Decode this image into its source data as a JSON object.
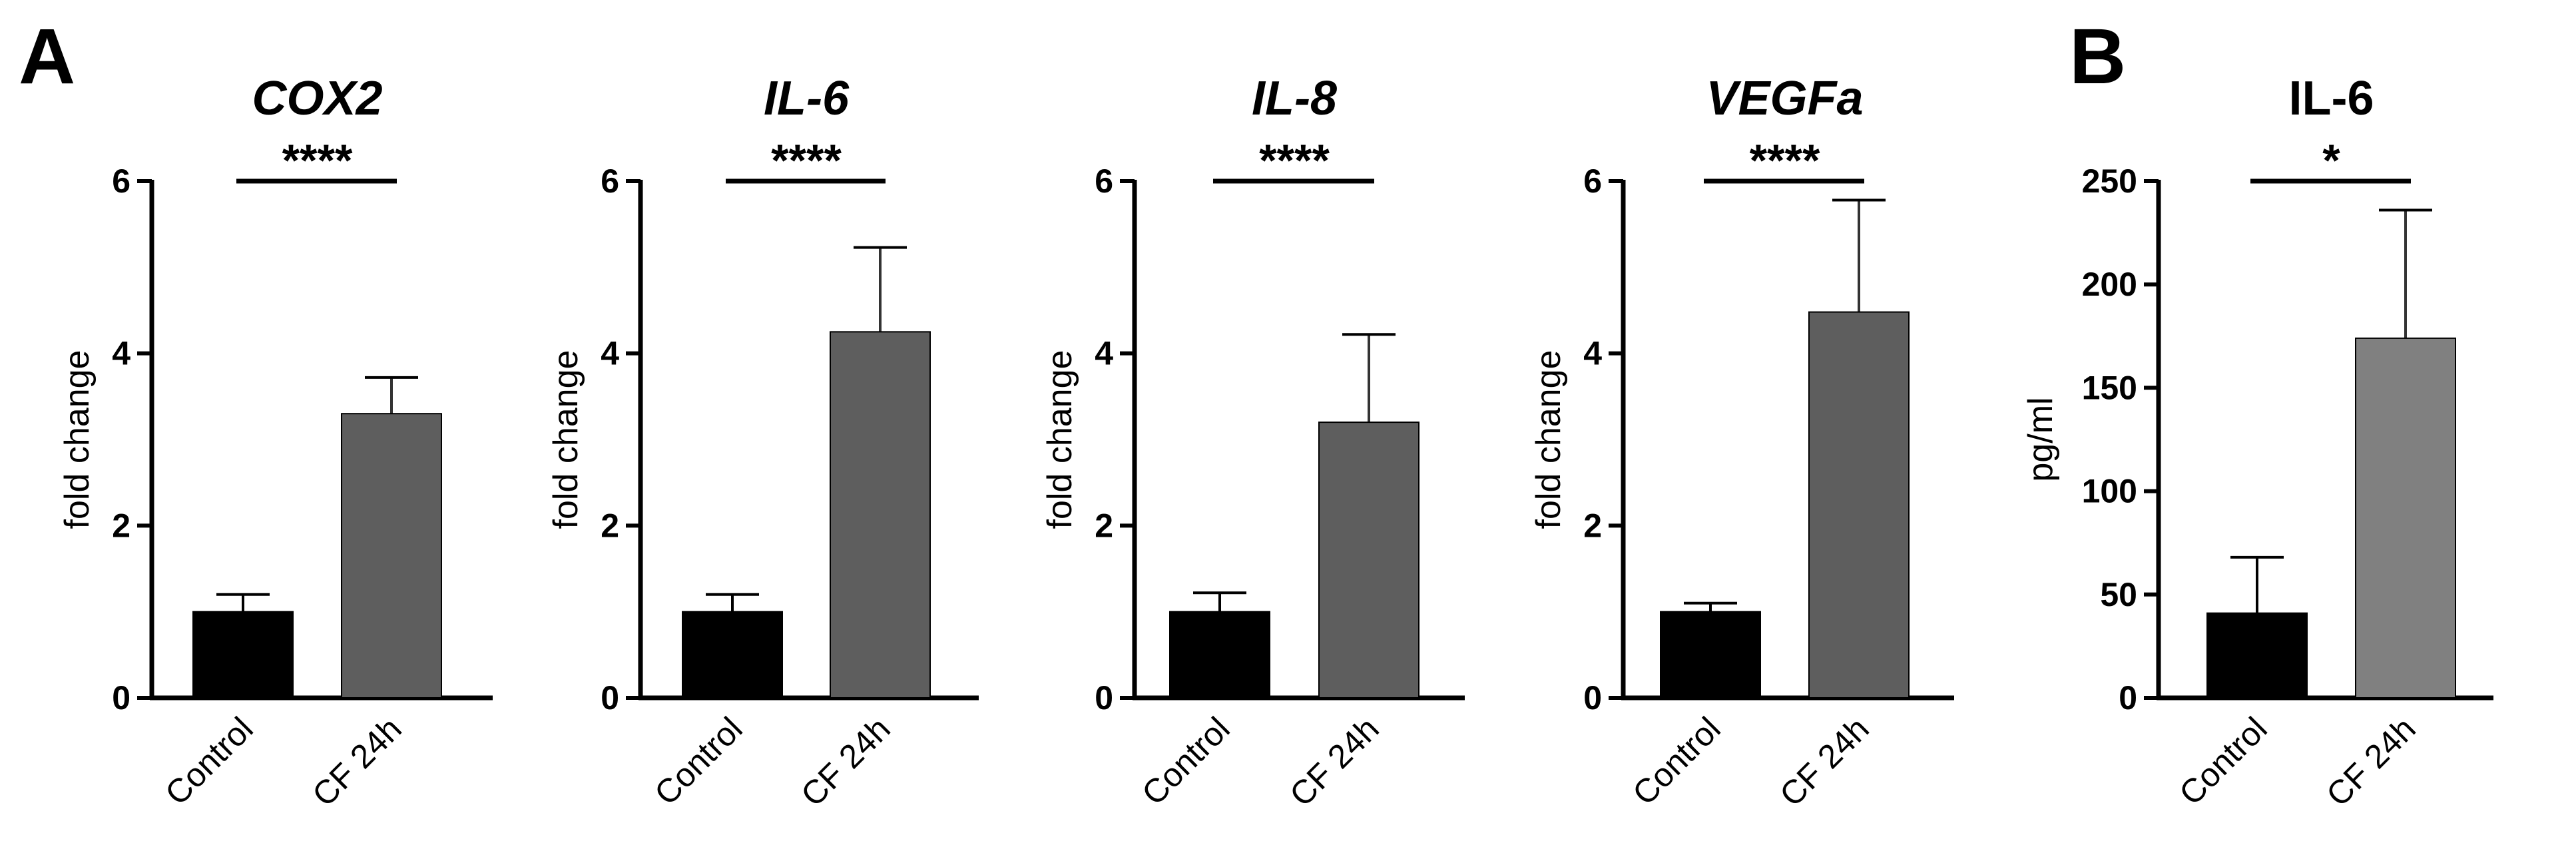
{
  "chart_data": [
    {
      "type": "bar",
      "panel": "A",
      "title": "COX2",
      "title_style": "italic",
      "xlabel": "",
      "ylabel": "fold change",
      "ylim": [
        0,
        6
      ],
      "yticks": [
        0,
        2,
        4,
        6
      ],
      "categories": [
        "Control",
        "CF 24h"
      ],
      "values": [
        1.0,
        3.3
      ],
      "errors": [
        0.2,
        0.42
      ],
      "colors": [
        "#000000",
        "#5e5e5e"
      ],
      "significance": "****"
    },
    {
      "type": "bar",
      "title": "IL-6",
      "title_style": "italic",
      "xlabel": "",
      "ylabel": "fold change",
      "ylim": [
        0,
        6
      ],
      "yticks": [
        0,
        2,
        4,
        6
      ],
      "categories": [
        "Control",
        "CF 24h"
      ],
      "values": [
        1.0,
        4.25
      ],
      "errors": [
        0.2,
        0.98
      ],
      "colors": [
        "#000000",
        "#5e5e5e"
      ],
      "significance": "****"
    },
    {
      "type": "bar",
      "title": "IL-8",
      "title_style": "italic",
      "xlabel": "",
      "ylabel": "fold change",
      "ylim": [
        0,
        6
      ],
      "yticks": [
        0,
        2,
        4,
        6
      ],
      "categories": [
        "Control",
        "CF 24h"
      ],
      "values": [
        1.0,
        3.2
      ],
      "errors": [
        0.22,
        1.02
      ],
      "colors": [
        "#000000",
        "#5e5e5e"
      ],
      "significance": "****"
    },
    {
      "type": "bar",
      "title": "VEGFa",
      "title_style": "italic",
      "xlabel": "",
      "ylabel": "fold change",
      "ylim": [
        0,
        6
      ],
      "yticks": [
        0,
        2,
        4,
        6
      ],
      "categories": [
        "Control",
        "CF 24h"
      ],
      "values": [
        1.0,
        4.48
      ],
      "errors": [
        0.1,
        1.3
      ],
      "colors": [
        "#000000",
        "#5e5e5e"
      ],
      "significance": "****"
    },
    {
      "type": "bar",
      "panel": "B",
      "title": "IL-6",
      "title_style": "normal",
      "xlabel": "",
      "ylabel": "pg/ml",
      "ylim": [
        0,
        250
      ],
      "yticks": [
        0,
        50,
        100,
        150,
        200,
        250
      ],
      "categories": [
        "Control",
        "CF 24h"
      ],
      "values": [
        41,
        174
      ],
      "errors": [
        27,
        62
      ],
      "colors": [
        "#000000",
        "#808080"
      ],
      "significance": "*"
    }
  ]
}
